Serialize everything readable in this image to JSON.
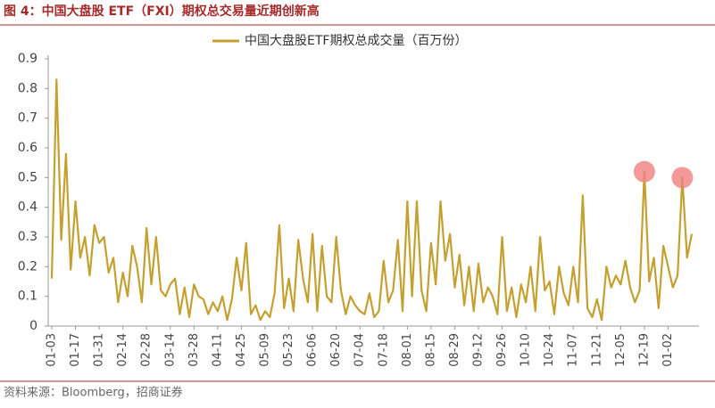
{
  "chart_data": {
    "type": "line",
    "title": "图 4：中国大盘股 ETF（FXI）期权总交易量近期创新高",
    "source": "资料来源：Bloomberg，招商证券",
    "categories": [
      "01-03",
      null,
      null,
      null,
      null,
      "01-17",
      null,
      null,
      null,
      null,
      "01-31",
      null,
      null,
      null,
      null,
      "02-14",
      null,
      null,
      null,
      null,
      "02-28",
      null,
      null,
      null,
      null,
      "03-14",
      null,
      null,
      null,
      null,
      "03-28",
      null,
      null,
      null,
      null,
      "04-11",
      null,
      null,
      null,
      null,
      "04-25",
      null,
      null,
      null,
      null,
      "05-09",
      null,
      null,
      null,
      null,
      "05-23",
      null,
      null,
      null,
      null,
      "06-06",
      null,
      null,
      null,
      null,
      "06-20",
      null,
      null,
      null,
      null,
      "07-04",
      null,
      null,
      null,
      null,
      "07-18",
      null,
      null,
      null,
      null,
      "08-01",
      null,
      null,
      null,
      null,
      "08-15",
      null,
      null,
      null,
      null,
      "08-29",
      null,
      null,
      null,
      null,
      "09-12",
      null,
      null,
      null,
      null,
      "09-26",
      null,
      null,
      null,
      null,
      "10-10",
      null,
      null,
      null,
      null,
      "10-24",
      null,
      null,
      null,
      null,
      "11-07",
      null,
      null,
      null,
      null,
      "11-21",
      null,
      null,
      null,
      null,
      "12-05",
      null,
      null,
      null,
      null,
      "12-19",
      null,
      null,
      null,
      null,
      "01-02",
      null,
      null,
      null,
      null,
      null
    ],
    "series": [
      {
        "name": "中国大盘股ETF期权总成交量（百万份）",
        "color": "#c4a030",
        "values": [
          0.16,
          0.83,
          0.29,
          0.58,
          0.19,
          0.42,
          0.23,
          0.3,
          0.17,
          0.34,
          0.28,
          0.3,
          0.18,
          0.23,
          0.08,
          0.18,
          0.1,
          0.27,
          0.2,
          0.08,
          0.33,
          0.14,
          0.3,
          0.12,
          0.1,
          0.14,
          0.16,
          0.04,
          0.13,
          0.03,
          0.14,
          0.1,
          0.09,
          0.04,
          0.08,
          0.05,
          0.1,
          0.02,
          0.09,
          0.23,
          0.12,
          0.28,
          0.04,
          0.07,
          0.02,
          0.05,
          0.03,
          0.11,
          0.34,
          0.06,
          0.16,
          0.05,
          0.29,
          0.16,
          0.08,
          0.31,
          0.05,
          0.27,
          0.1,
          0.08,
          0.3,
          0.12,
          0.04,
          0.1,
          0.07,
          0.05,
          0.04,
          0.11,
          0.03,
          0.05,
          0.22,
          0.08,
          0.12,
          0.29,
          0.05,
          0.42,
          0.1,
          0.42,
          0.12,
          0.05,
          0.28,
          0.14,
          0.42,
          0.22,
          0.31,
          0.13,
          0.24,
          0.07,
          0.2,
          0.05,
          0.21,
          0.08,
          0.13,
          0.1,
          0.04,
          0.3,
          0.05,
          0.13,
          0.03,
          0.14,
          0.08,
          0.2,
          0.05,
          0.3,
          0.12,
          0.15,
          0.04,
          0.2,
          0.11,
          0.07,
          0.2,
          0.08,
          0.44,
          0.06,
          0.03,
          0.09,
          0.02,
          0.2,
          0.13,
          0.17,
          0.14,
          0.22,
          0.13,
          0.08,
          0.12,
          0.52,
          0.15,
          0.23,
          0.06,
          0.27,
          0.2,
          0.13,
          0.17,
          0.5,
          0.23,
          0.31
        ]
      }
    ],
    "highlights": [
      125,
      133
    ],
    "highlight_color": "#f08080",
    "ylim": [
      0,
      0.9
    ],
    "yticks": [
      0,
      0.1,
      0.2,
      0.3,
      0.4,
      0.5,
      0.6,
      0.7,
      0.8,
      0.9
    ],
    "legend": "top"
  }
}
